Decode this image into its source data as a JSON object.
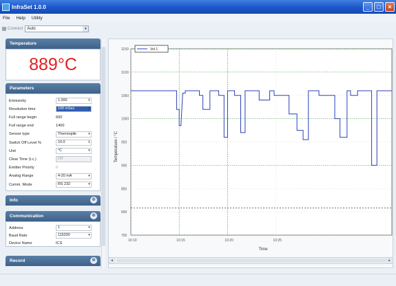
{
  "window": {
    "title": "InfraSet 1.0.0"
  },
  "menu": [
    "File",
    "Help",
    "Utility"
  ],
  "toolbar": {
    "connect_label": "Connect",
    "port_value": "Auto"
  },
  "temperature": {
    "header": "Temperature",
    "value": "889°C"
  },
  "parameters": {
    "header": "Parameters",
    "rows": [
      {
        "label": "Emissivity",
        "value": "1.000",
        "kind": "spin"
      },
      {
        "label": "Resolution time",
        "value": "100 mSec",
        "kind": "combo-selected"
      },
      {
        "label": "Full range begin",
        "value": "600",
        "kind": "plain"
      },
      {
        "label": "Full range end",
        "value": "1400",
        "kind": "plain"
      },
      {
        "label": "Sensor type",
        "value": "Thermopile",
        "kind": "combo"
      },
      {
        "label": "Switch Off Level %",
        "value": "10.0",
        "kind": "spin-dim"
      },
      {
        "label": "Unit",
        "value": "°C",
        "kind": "combo"
      },
      {
        "label": "Clear Time (t.c.)",
        "value": "Off",
        "kind": "disabled"
      },
      {
        "label": "Emitter Priority",
        "value": "0",
        "kind": "dim"
      },
      {
        "label": "Analog Range",
        "value": "4-20 mA",
        "kind": "combo"
      },
      {
        "label": "Comm. Mode",
        "value": "RS 232",
        "kind": "combo"
      }
    ]
  },
  "info": {
    "header": "Info"
  },
  "communication": {
    "header": "Communication",
    "rows": [
      {
        "label": "Address",
        "value": "1",
        "kind": "combo"
      },
      {
        "label": "Baud Rate",
        "value": "115200",
        "kind": "combo"
      },
      {
        "label": "Device Name",
        "value": "ICS",
        "kind": "plain"
      }
    ]
  },
  "record": {
    "header": "Record"
  },
  "chart_data": {
    "type": "line",
    "title": "",
    "xlabel": "Time",
    "ylabel": "Temperature / °C",
    "legend": {
      "entries": [
        "Vol 1"
      ],
      "placement": "top-left"
    },
    "xticks": [
      "10:10",
      "10:15",
      "10:20",
      "10:25"
    ],
    "yticks": [
      "750",
      "800",
      "850",
      "900",
      "950",
      "1000",
      "1050",
      "1100",
      "1150"
    ],
    "ylim": [
      750,
      1150
    ],
    "series": [
      {
        "name": "Vol 1",
        "color": "#2a3fb8",
        "x": [
          0,
          4,
          4,
          5.2,
          5.2,
          5.5,
          5.5,
          5.7,
          5.9,
          6.2,
          6.2,
          7.8,
          7.8,
          8.2,
          8.2,
          9.0,
          9.0,
          10.0,
          10.0,
          10.6,
          10.6,
          11.0,
          11.0,
          11.8,
          11.8,
          12.5,
          12.5,
          13.0,
          13.0,
          14.6,
          14.6,
          15.8,
          15.8,
          16.3,
          16.3,
          18.0,
          18.0,
          18.9,
          18.9,
          19.6,
          19.6,
          20.2,
          20.2,
          21.4,
          21.4,
          23.2,
          23.2,
          23.8,
          23.8,
          24.6,
          24.6,
          25.0,
          25.0,
          25.8,
          25.8,
          27.4,
          27.4,
          28.0,
          28.0,
          29.7
        ],
        "y": [
          1060,
          1060,
          1060,
          1060,
          1020,
          1020,
          985,
          985,
          1055,
          1055,
          1060,
          1060,
          1050,
          1050,
          1020,
          1020,
          1060,
          1060,
          1050,
          1050,
          960,
          960,
          1060,
          1060,
          1050,
          1050,
          970,
          970,
          1060,
          1060,
          1040,
          1040,
          1060,
          1060,
          1050,
          1050,
          1010,
          1010,
          975,
          975,
          955,
          955,
          1060,
          1060,
          1050,
          1050,
          1000,
          1000,
          960,
          960,
          1060,
          1060,
          1050,
          1050,
          1060,
          1060,
          900,
          900,
          1060,
          1060
        ]
      }
    ],
    "grid": true,
    "cursors_x": [
      5.5,
      11.0
    ],
    "cursors_y": [
      900,
      1000,
      1100,
      1150
    ],
    "ref_line_y": [
      808
    ]
  }
}
